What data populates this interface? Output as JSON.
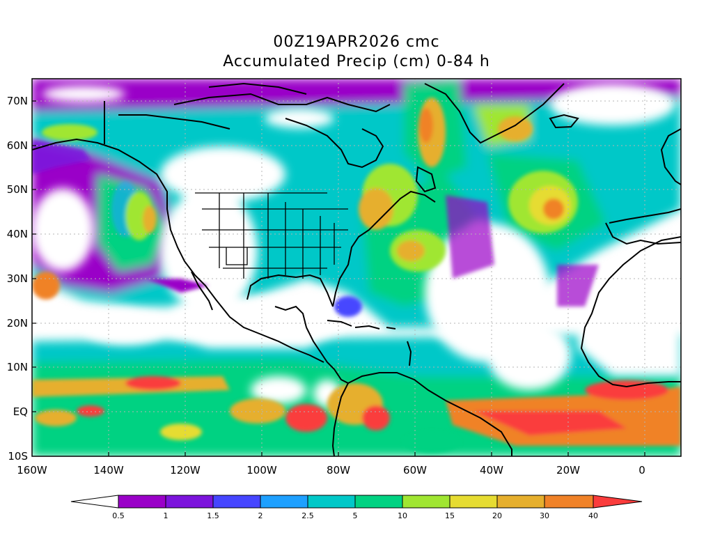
{
  "title": {
    "line1": "00Z19APR2026 cmc",
    "line2": "Accumulated Precip (cm) 0-84 h"
  },
  "map": {
    "lat_labels": [
      "70N",
      "60N",
      "50N",
      "40N",
      "30N",
      "20N",
      "10N",
      "EQ",
      "10S"
    ],
    "lon_labels": [
      "160W",
      "140W",
      "120W",
      "100W",
      "80W",
      "60W",
      "40W",
      "20W",
      "0"
    ]
  },
  "colorbar": {
    "levels": [
      "0.5",
      "1",
      "1.5",
      "2",
      "2.5",
      "5",
      "10",
      "15",
      "20",
      "30",
      "40"
    ],
    "colors": [
      "#9a00c8",
      "#7c14dc",
      "#4646ff",
      "#1ea0ff",
      "#00c8c8",
      "#00d282",
      "#a0e632",
      "#e6dc32",
      "#e6af2d",
      "#f08228",
      "#fa3c3c"
    ]
  },
  "legend_colors": {
    "below_min": "#ffffff",
    "above_max": "#fa3c3c",
    "coast": "#000000",
    "grid": "#b4b4b4"
  }
}
